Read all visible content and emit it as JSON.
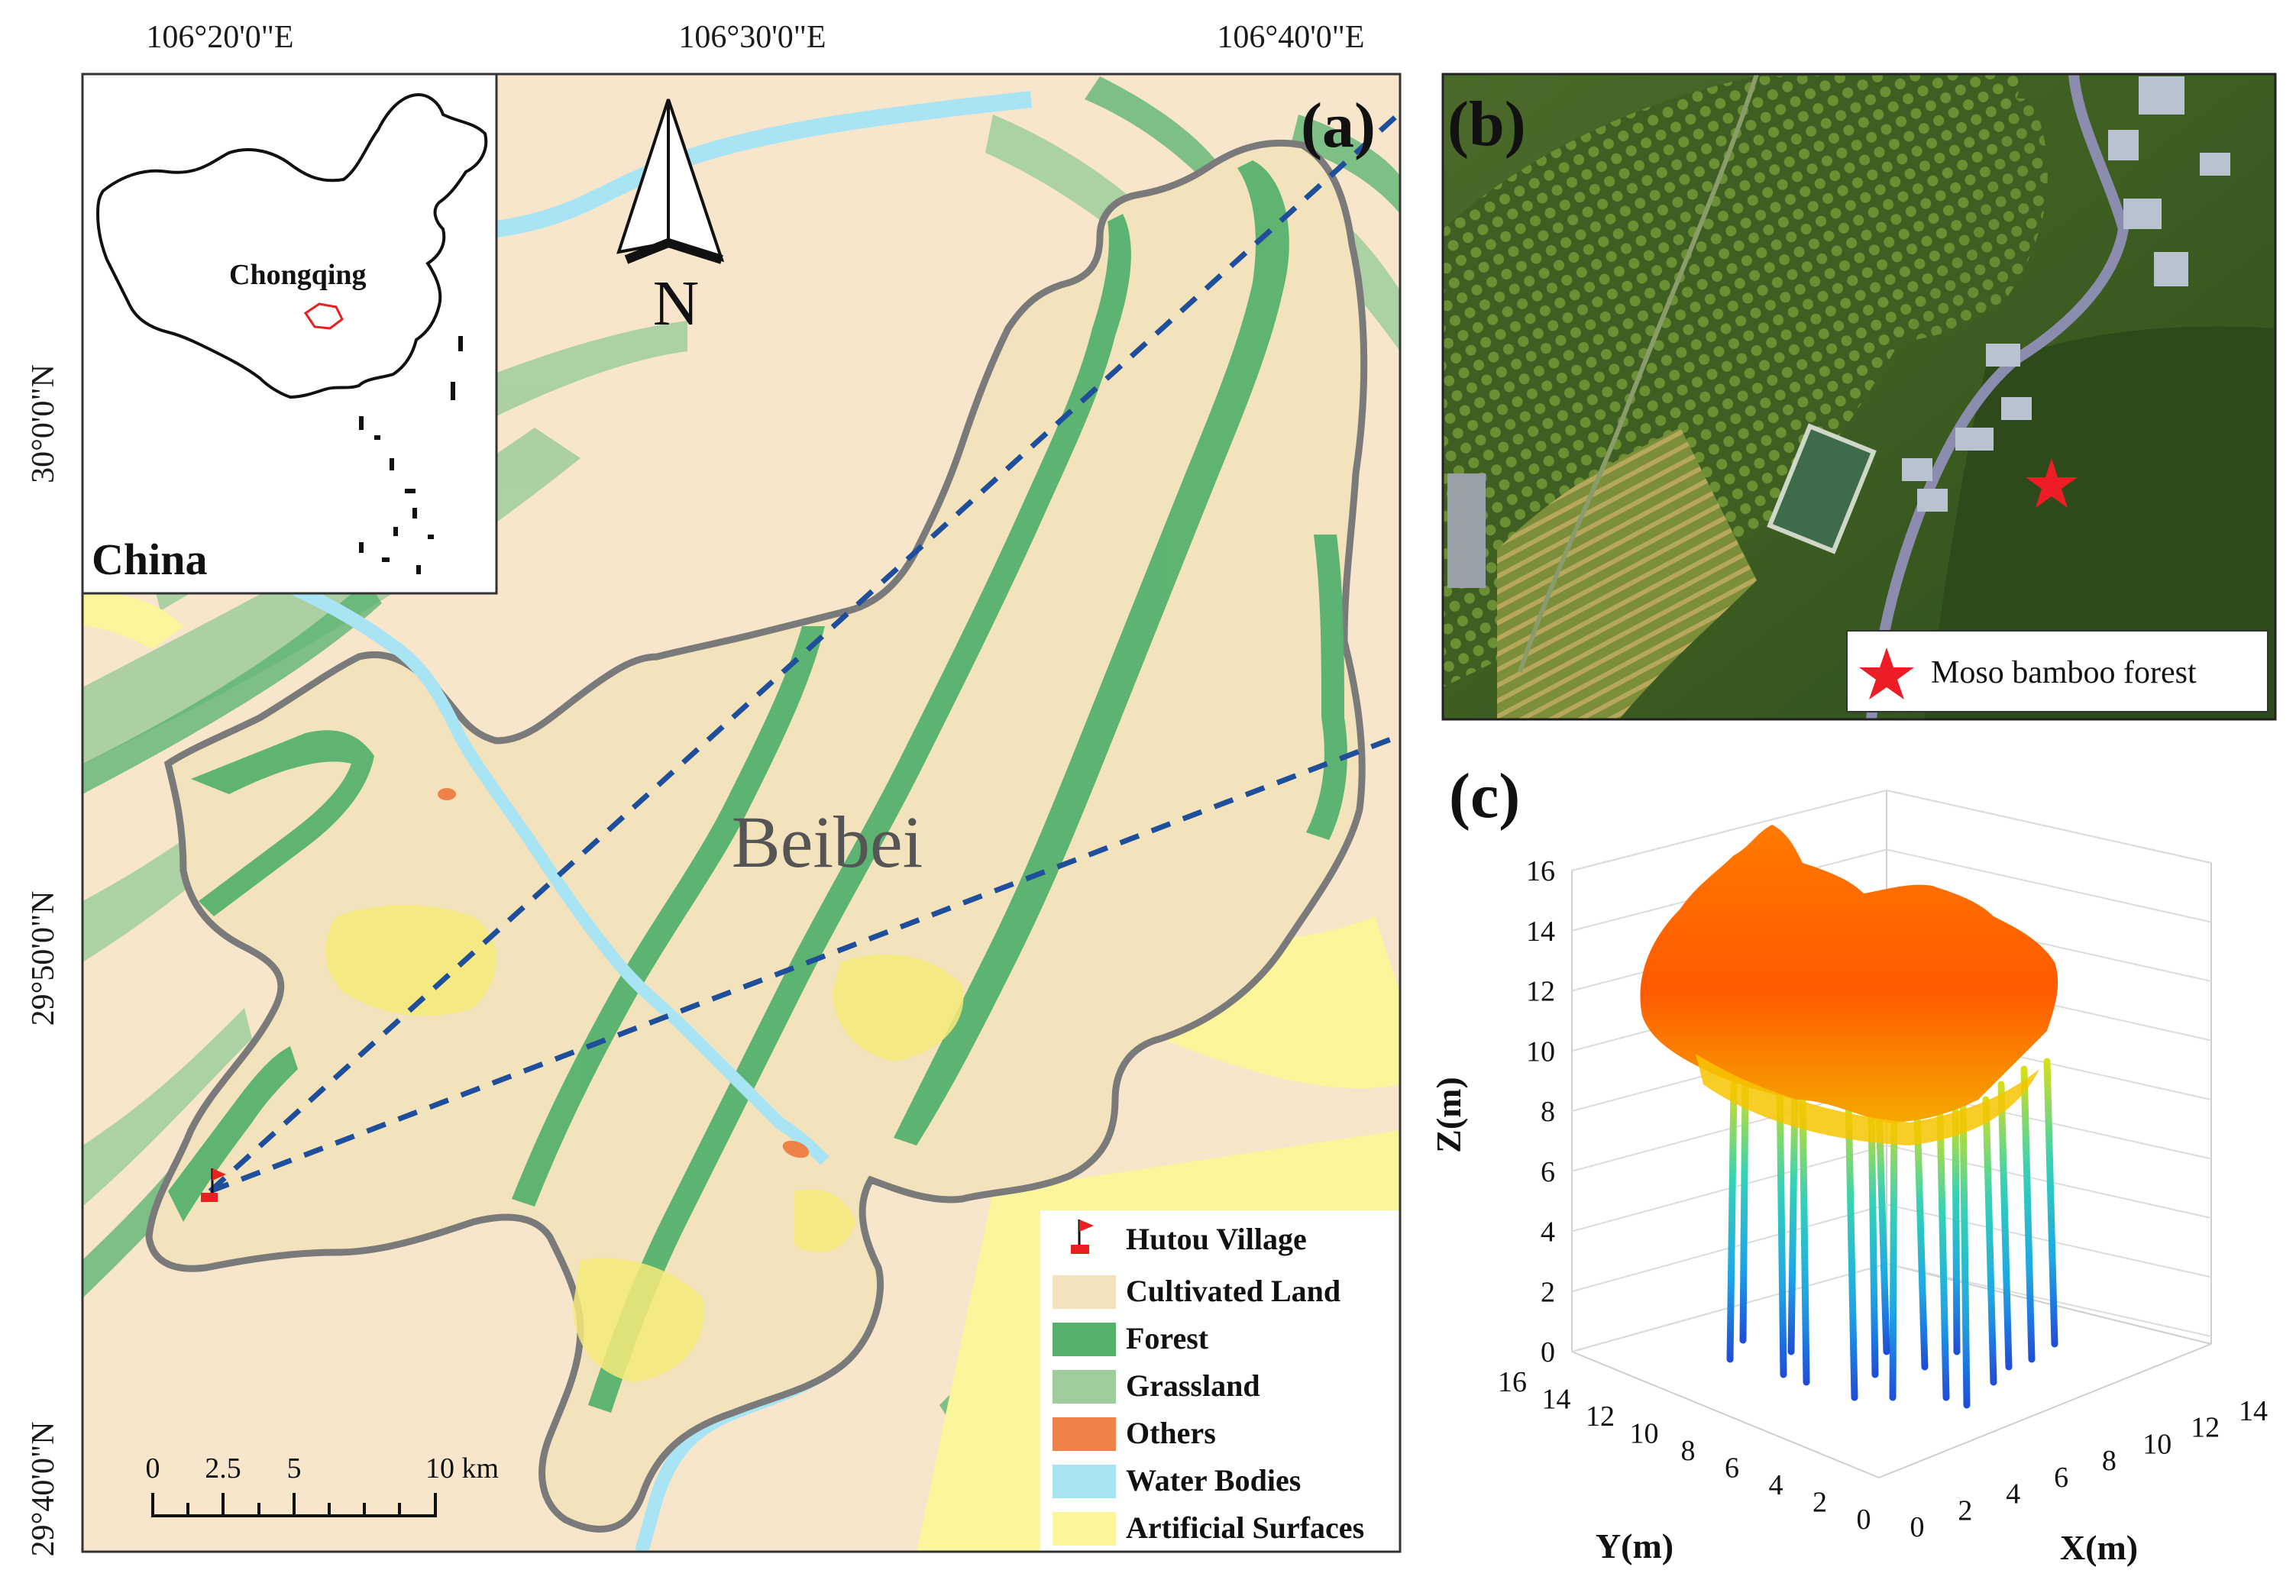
{
  "panel_a": {
    "letter": "(a)",
    "top_coords": [
      "106°20'0\"E",
      "106°30'0\"E",
      "106°40'0\"E"
    ],
    "left_coords": [
      "30°0'0\"N",
      "29°50'0\"N",
      "29°40'0\"N"
    ],
    "north_label": "N",
    "region_label": "Beibei",
    "inset": {
      "country_label": "China",
      "city_label": "Chongqing"
    },
    "scalebar": {
      "ticks": [
        "0",
        "2.5",
        "5",
        "10 km"
      ]
    },
    "legend": [
      {
        "label": "Hutou Village",
        "color": "#e8201f",
        "kind": "flag"
      },
      {
        "label": "Cultivated Land",
        "color": "#f3e3bd",
        "kind": "swatch"
      },
      {
        "label": "Forest",
        "color": "#56b16d",
        "kind": "swatch"
      },
      {
        "label": "Grassland",
        "color": "#9fcc9c",
        "kind": "swatch"
      },
      {
        "label": "Others",
        "color": "#ef8248",
        "kind": "swatch"
      },
      {
        "label": "Water Bodies",
        "color": "#a8e4f3",
        "kind": "swatch"
      },
      {
        "label": "Artificial Surfaces",
        "color": "#fbf59b",
        "kind": "swatch"
      }
    ]
  },
  "panel_b": {
    "letter": "(b)",
    "legend_label": "Moso bamboo forest",
    "star_color": "#ee1c25"
  },
  "panel_c": {
    "letter": "(c)",
    "zlabel": "Z(m)",
    "ylabel": "Y(m)",
    "xlabel": "X(m)",
    "z_ticks": [
      "0",
      "2",
      "4",
      "6",
      "8",
      "10",
      "12",
      "14",
      "16"
    ],
    "y_ticks": [
      "0",
      "2",
      "4",
      "6",
      "8",
      "10",
      "12",
      "14",
      "16"
    ],
    "x_ticks": [
      "0",
      "2",
      "4",
      "6",
      "8",
      "10",
      "12",
      "14"
    ]
  },
  "colors": {
    "cultivated": "#f3e3bd",
    "background_land": "#f7e6cc",
    "forest": "#56b16d",
    "grassland": "#9fcc9c",
    "water": "#a8e4f3",
    "artificial": "#fbf59b",
    "others": "#ef8248",
    "boundary": "#7a7a7a",
    "dash_line": "#1f4e9a"
  }
}
